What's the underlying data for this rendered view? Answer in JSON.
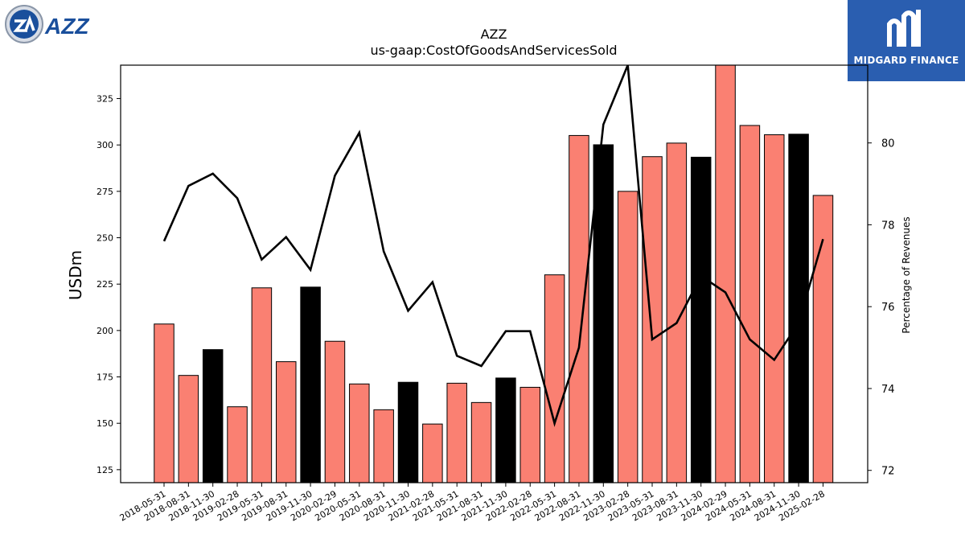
{
  "header": {
    "ticker_logo_text": "AZZ",
    "brand_logo_text": "MIDGARD FINANCE"
  },
  "colors": {
    "bar_quarter": "#fa8072",
    "bar_fiscal_year_end": "#000000",
    "line": "#000000",
    "brand_blue": "#2a5eb0",
    "azz_blue": "#1a4f9c"
  },
  "chart_data": {
    "type": "bar",
    "title": "AZZ",
    "subtitle": "us-gaap:CostOfGoodsAndServicesSold",
    "ylabel": "USDm",
    "y2label": "Percentage of Revenues",
    "ylim": [
      118,
      343
    ],
    "y2lim": [
      71.7,
      81.9
    ],
    "yticks": [
      125,
      150,
      175,
      200,
      225,
      250,
      275,
      300,
      325
    ],
    "y2ticks": [
      72,
      74,
      76,
      78,
      80
    ],
    "grid": false,
    "categories": [
      "2018-05-31",
      "2018-08-31",
      "2018-11-30",
      "2019-02-28",
      "2019-05-31",
      "2019-08-31",
      "2019-11-30",
      "2020-02-29",
      "2020-05-31",
      "2020-08-31",
      "2020-11-30",
      "2021-02-28",
      "2021-05-31",
      "2021-08-31",
      "2021-11-30",
      "2022-02-28",
      "2022-05-31",
      "2022-08-31",
      "2022-11-30",
      "2023-02-28",
      "2023-05-31",
      "2023-08-31",
      "2023-11-30",
      "2024-02-29",
      "2024-05-31",
      "2024-08-31",
      "2024-11-30",
      "2025-02-28"
    ],
    "series": [
      {
        "kind": "bar",
        "values": [
          203.5,
          175.8,
          189.7,
          158.9,
          223.0,
          183.2,
          223.4,
          194.2,
          171.2,
          157.3,
          172.1,
          149.6,
          171.6,
          161.2,
          174.4,
          169.4,
          230.0,
          305.1,
          300.1,
          275.0,
          293.7,
          301.0,
          293.4,
          343.0,
          310.5,
          305.5,
          305.8,
          272.8
        ],
        "highlighted": [
          false,
          false,
          true,
          false,
          false,
          false,
          true,
          false,
          false,
          false,
          true,
          false,
          false,
          false,
          true,
          false,
          false,
          false,
          true,
          false,
          false,
          false,
          true,
          false,
          false,
          false,
          true,
          false
        ]
      },
      {
        "kind": "line",
        "axis": "right",
        "values": [
          77.6,
          78.95,
          79.25,
          78.65,
          77.15,
          77.7,
          76.9,
          79.2,
          80.25,
          77.35,
          75.9,
          76.6,
          74.8,
          74.55,
          75.4,
          75.4,
          73.15,
          75.0,
          80.45,
          81.9,
          75.2,
          75.6,
          76.75,
          76.35,
          75.2,
          74.7,
          75.6,
          77.65
        ]
      }
    ]
  }
}
